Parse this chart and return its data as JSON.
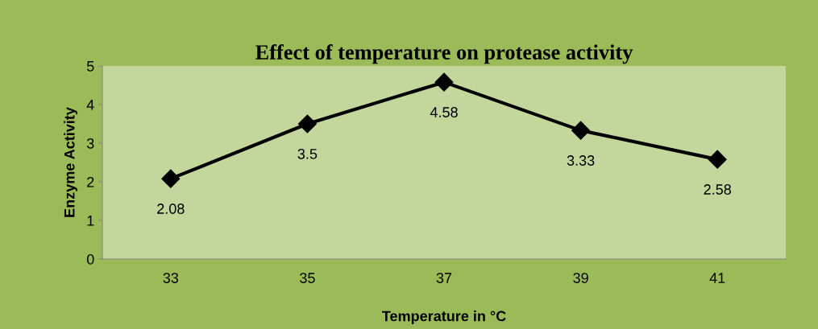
{
  "chart_data": {
    "type": "line",
    "title": "Effect of temperature on protease activity",
    "xlabel": "Temperature in °C",
    "ylabel": "Enzyme Activity",
    "categories": [
      "33",
      "35",
      "37",
      "39",
      "41"
    ],
    "series": [
      {
        "color": "#000000",
        "values": [
          2.08,
          3.5,
          4.58,
          3.33,
          2.58
        ]
      }
    ],
    "ylim": [
      0,
      5
    ],
    "yticks": [
      0,
      1,
      2,
      3,
      4,
      5
    ],
    "grid": false,
    "marker": "diamond",
    "line_style": "solid",
    "data_labels": true
  }
}
